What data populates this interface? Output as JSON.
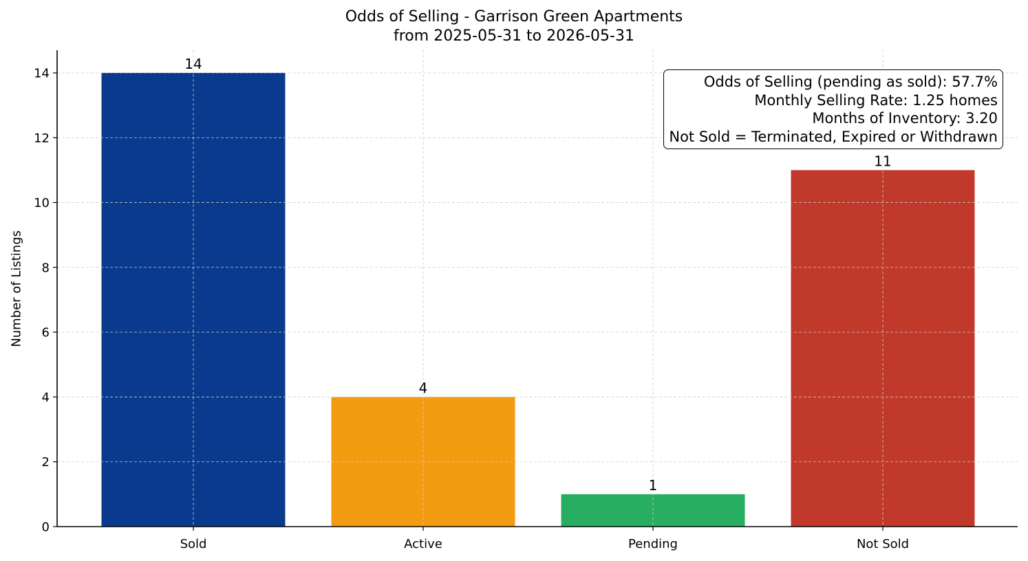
{
  "chart_data": {
    "type": "bar",
    "title": "Odds of Selling - Garrison Green Apartments",
    "subtitle": "from 2025-05-31 to 2026-05-31",
    "xlabel": "",
    "ylabel": "Number of Listings",
    "categories": [
      "Sold",
      "Active",
      "Pending",
      "Not Sold"
    ],
    "values": [
      14,
      4,
      1,
      11
    ],
    "data_labels": [
      "14",
      "4",
      "1",
      "11"
    ],
    "colors": [
      "#0a3a8e",
      "#f39c12",
      "#27ae60",
      "#c0392b"
    ],
    "ylim": [
      0,
      14.7
    ],
    "yticks": [
      0,
      2,
      4,
      6,
      8,
      10,
      12,
      14
    ],
    "grid": true,
    "annotation_box": {
      "placement": "top-right",
      "lines": [
        "Odds of Selling (pending as sold): 57.7%",
        "Monthly Selling Rate: 1.25 homes",
        "Months of Inventory: 3.20",
        "Not Sold = Terminated, Expired or Withdrawn"
      ]
    }
  }
}
